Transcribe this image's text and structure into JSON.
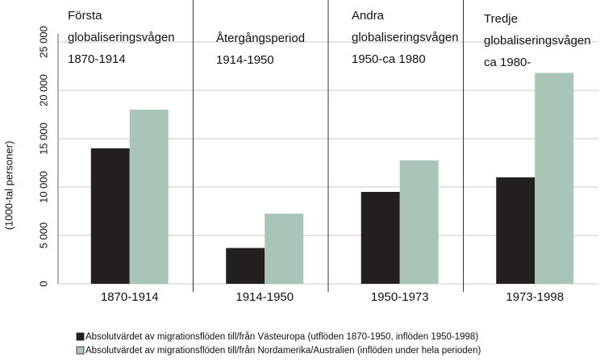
{
  "chart_data": {
    "type": "bar",
    "y_label": "(1000-tal personer)",
    "categories": [
      "1870-1914",
      "1914-1950",
      "1950-1973",
      "1973-1998"
    ],
    "series": [
      {
        "name": "Absolutvärdet av migrationsflöden till/från Västeuropa (utflöden 1870-1950, inflöden 1950-1998)",
        "color": "#231f20",
        "values": [
          14000,
          3700,
          9500,
          11000
        ]
      },
      {
        "name": "Absolutvärdet av migrationsflöden till/från Nordamerika/Australien (inflöden under hela perioden)",
        "color": "#a9c5b7",
        "values": [
          18000,
          7250,
          12750,
          21800
        ]
      }
    ],
    "annotations": [
      [
        "Första",
        "globaliseringsvågen",
        "1870-1914"
      ],
      [
        "Återgångsperiod",
        "1914-1950"
      ],
      [
        "Andra",
        "globaliseringsvågen",
        "1950-ca 1980"
      ],
      [
        "Tredje",
        "globaliseringsvågen",
        "ca 1980-"
      ]
    ],
    "ylim": [
      0,
      25000
    ],
    "yticks": [
      {
        "value": 0,
        "label": "0"
      },
      {
        "value": 5000,
        "label": "5 000"
      },
      {
        "value": 10000,
        "label": "10 000"
      },
      {
        "value": 15000,
        "label": "15 000"
      },
      {
        "value": 20000,
        "label": "20 000"
      },
      {
        "value": 25000,
        "label": "25 000"
      }
    ],
    "grid": true
  }
}
